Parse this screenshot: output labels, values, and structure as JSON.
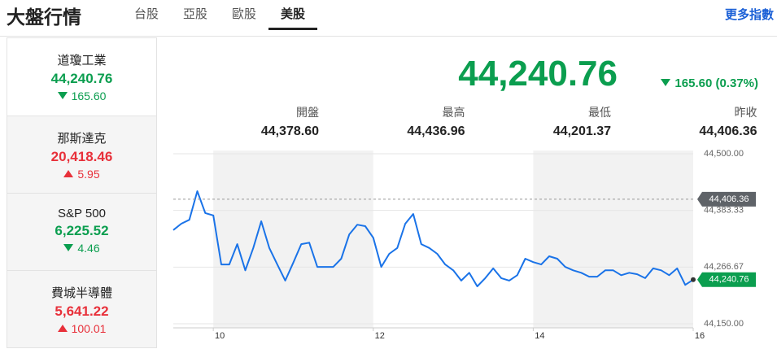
{
  "header": {
    "title": "大盤行情",
    "tabs": [
      "台股",
      "亞股",
      "歐股",
      "美股"
    ],
    "active_tab": 3,
    "more": "更多指數"
  },
  "indices": [
    {
      "name": "道瓊工業",
      "value": "44,240.76",
      "change": "165.60",
      "direction": "down"
    },
    {
      "name": "那斯達克",
      "value": "20,418.46",
      "change": "5.95",
      "direction": "up"
    },
    {
      "name": "S&P 500",
      "value": "6,225.52",
      "change": "4.46",
      "direction": "down"
    },
    {
      "name": "費城半導體",
      "value": "5,641.22",
      "change": "100.01",
      "direction": "up"
    }
  ],
  "selected_index": 0,
  "summary": {
    "price": "44,240.76",
    "change": "165.60 (0.37%)",
    "direction": "down",
    "stats": [
      {
        "label": "開盤",
        "value": "44,378.60"
      },
      {
        "label": "最高",
        "value": "44,436.96"
      },
      {
        "label": "最低",
        "value": "44,201.37"
      },
      {
        "label": "昨收",
        "value": "44,406.36"
      }
    ]
  },
  "chart_data": {
    "type": "line",
    "x": [
      9.5,
      9.6,
      9.7,
      9.8,
      9.9,
      10.0,
      10.1,
      10.2,
      10.3,
      10.4,
      10.5,
      10.6,
      10.7,
      10.8,
      10.9,
      11.0,
      11.1,
      11.2,
      11.3,
      11.4,
      11.5,
      11.6,
      11.7,
      11.8,
      11.9,
      12.0,
      12.1,
      12.2,
      12.3,
      12.4,
      12.5,
      12.6,
      12.7,
      12.8,
      12.9,
      13.0,
      13.1,
      13.2,
      13.3,
      13.4,
      13.5,
      13.6,
      13.7,
      13.8,
      13.9,
      14.0,
      14.1,
      14.2,
      14.3,
      14.4,
      14.5,
      14.6,
      14.7,
      14.8,
      14.9,
      15.0,
      15.1,
      15.2,
      15.3,
      15.4,
      15.5,
      15.6,
      15.7,
      15.8,
      15.9,
      16.0
    ],
    "values": [
      44343,
      44356,
      44364,
      44423,
      44378,
      44373,
      44272,
      44272,
      44314,
      44260,
      44306,
      44361,
      44306,
      44272,
      44239,
      44276,
      44314,
      44317,
      44267,
      44267,
      44267,
      44284,
      44334,
      44354,
      44351,
      44327,
      44267,
      44294,
      44306,
      44356,
      44376,
      44314,
      44306,
      44294,
      44272,
      44260,
      44239,
      44255,
      44227,
      44244,
      44264,
      44244,
      44239,
      44250,
      44284,
      44277,
      44272,
      44289,
      44284,
      44267,
      44260,
      44255,
      44247,
      44247,
      44260,
      44260,
      44250,
      44255,
      44252,
      44244,
      44264,
      44260,
      44250,
      44264,
      44230,
      44240.76
    ],
    "color": "#1a73e8",
    "xlim": [
      9.5,
      16
    ],
    "xticks": [
      10,
      12,
      14,
      16
    ],
    "ylim": [
      44150,
      44500
    ],
    "yticks": [
      {
        "value": 44150,
        "label": "44,150.00"
      },
      {
        "value": 44266.67,
        "label": "44,266.67"
      },
      {
        "value": 44383.33,
        "label": "44,383.33"
      },
      {
        "value": 44500,
        "label": "44,500.00"
      }
    ],
    "grid": true,
    "shaded_bands": true,
    "annotations": [
      {
        "value": 44406.36,
        "label": "44,406.36",
        "color": "#5f6368",
        "dashed": true
      },
      {
        "value": 44240.76,
        "label": "44,240.76",
        "color": "#0b9e4f",
        "dashed": false
      }
    ]
  }
}
